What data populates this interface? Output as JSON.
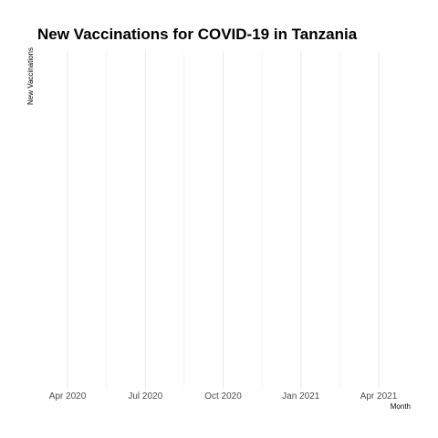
{
  "chart_data": {
    "type": "line",
    "title": "New Vaccinations for COVID-19 in Tanzania",
    "xlabel": "Month",
    "ylabel": "New Vaccinations",
    "x_ticks": [
      "Apr 2020",
      "Jul 2020",
      "Oct 2020",
      "Jan 2021",
      "Apr 2021"
    ],
    "x": [],
    "series": [
      {
        "values": []
      }
    ],
    "grid": true,
    "legend": "none"
  }
}
